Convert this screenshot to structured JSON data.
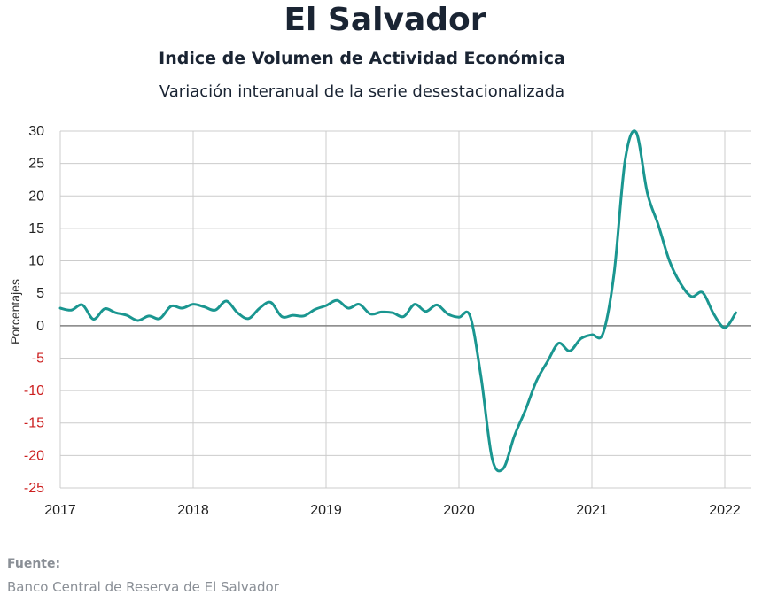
{
  "header": {
    "title": "El Salvador",
    "subtitle": "Indice de Volumen de  Actividad Económica",
    "description": "Variación interanual de la serie desestacionalizada"
  },
  "footer": {
    "source_label": "Fuente:",
    "source_text": "Banco Central de Reserva de El Salvador"
  },
  "colors": {
    "line": "#1a9690",
    "negative_ticks": "#cc1f1f",
    "positive_ticks": "#222222",
    "grid": "#cccccc",
    "zero_line": "#808080"
  },
  "chart_data": {
    "type": "line",
    "title": "Indice de Volumen de  Actividad Económica",
    "subtitle": "Variación interanual de la serie desestacionalizada",
    "xlabel": "",
    "ylabel": "Porcentajes",
    "xlim": [
      2017.0,
      2022.2
    ],
    "ylim": [
      -25,
      30
    ],
    "x_ticks": [
      2017,
      2018,
      2019,
      2020,
      2021,
      2022
    ],
    "y_ticks": [
      30,
      25,
      20,
      15,
      10,
      5,
      0,
      -5,
      -10,
      -15,
      -20,
      -25
    ],
    "grid": true,
    "legend": "none",
    "series": [
      {
        "values": [
          [
            "2017-01",
            2.7
          ],
          [
            "2017-02",
            2.4
          ],
          [
            "2017-03",
            3.2
          ],
          [
            "2017-04",
            1.0
          ],
          [
            "2017-05",
            2.6
          ],
          [
            "2017-06",
            2.0
          ],
          [
            "2017-07",
            1.6
          ],
          [
            "2017-08",
            0.8
          ],
          [
            "2017-09",
            1.5
          ],
          [
            "2017-10",
            1.1
          ],
          [
            "2017-11",
            3.0
          ],
          [
            "2017-12",
            2.7
          ],
          [
            "2018-01",
            3.3
          ],
          [
            "2018-02",
            2.9
          ],
          [
            "2018-03",
            2.4
          ],
          [
            "2018-04",
            3.8
          ],
          [
            "2018-05",
            2.0
          ],
          [
            "2018-06",
            1.1
          ],
          [
            "2018-07",
            2.7
          ],
          [
            "2018-08",
            3.6
          ],
          [
            "2018-09",
            1.4
          ],
          [
            "2018-10",
            1.6
          ],
          [
            "2018-11",
            1.5
          ],
          [
            "2018-12",
            2.5
          ],
          [
            "2019-01",
            3.1
          ],
          [
            "2019-02",
            3.9
          ],
          [
            "2019-03",
            2.7
          ],
          [
            "2019-04",
            3.3
          ],
          [
            "2019-05",
            1.8
          ],
          [
            "2019-06",
            2.1
          ],
          [
            "2019-07",
            2.0
          ],
          [
            "2019-08",
            1.4
          ],
          [
            "2019-09",
            3.3
          ],
          [
            "2019-10",
            2.2
          ],
          [
            "2019-11",
            3.2
          ],
          [
            "2019-12",
            1.8
          ],
          [
            "2020-01",
            1.3
          ],
          [
            "2020-02",
            1.5
          ],
          [
            "2020-03",
            -8.0
          ],
          [
            "2020-04",
            -20.5
          ],
          [
            "2020-05",
            -22.0
          ],
          [
            "2020-06",
            -17.0
          ],
          [
            "2020-07",
            -13.0
          ],
          [
            "2020-08",
            -8.5
          ],
          [
            "2020-09",
            -5.5
          ],
          [
            "2020-10",
            -2.7
          ],
          [
            "2020-11",
            -3.9
          ],
          [
            "2020-12",
            -2.0
          ],
          [
            "2021-01",
            -1.4
          ],
          [
            "2021-02",
            -1.2
          ],
          [
            "2021-03",
            8.0
          ],
          [
            "2021-04",
            25.5
          ],
          [
            "2021-05",
            29.8
          ],
          [
            "2021-06",
            20.5
          ],
          [
            "2021-07",
            15.5
          ],
          [
            "2021-08",
            10.0
          ],
          [
            "2021-09",
            6.5
          ],
          [
            "2021-10",
            4.5
          ],
          [
            "2021-11",
            5.1
          ],
          [
            "2021-12",
            1.8
          ],
          [
            "2022-01",
            -0.3
          ],
          [
            "2022-02",
            2.0
          ]
        ]
      }
    ]
  }
}
